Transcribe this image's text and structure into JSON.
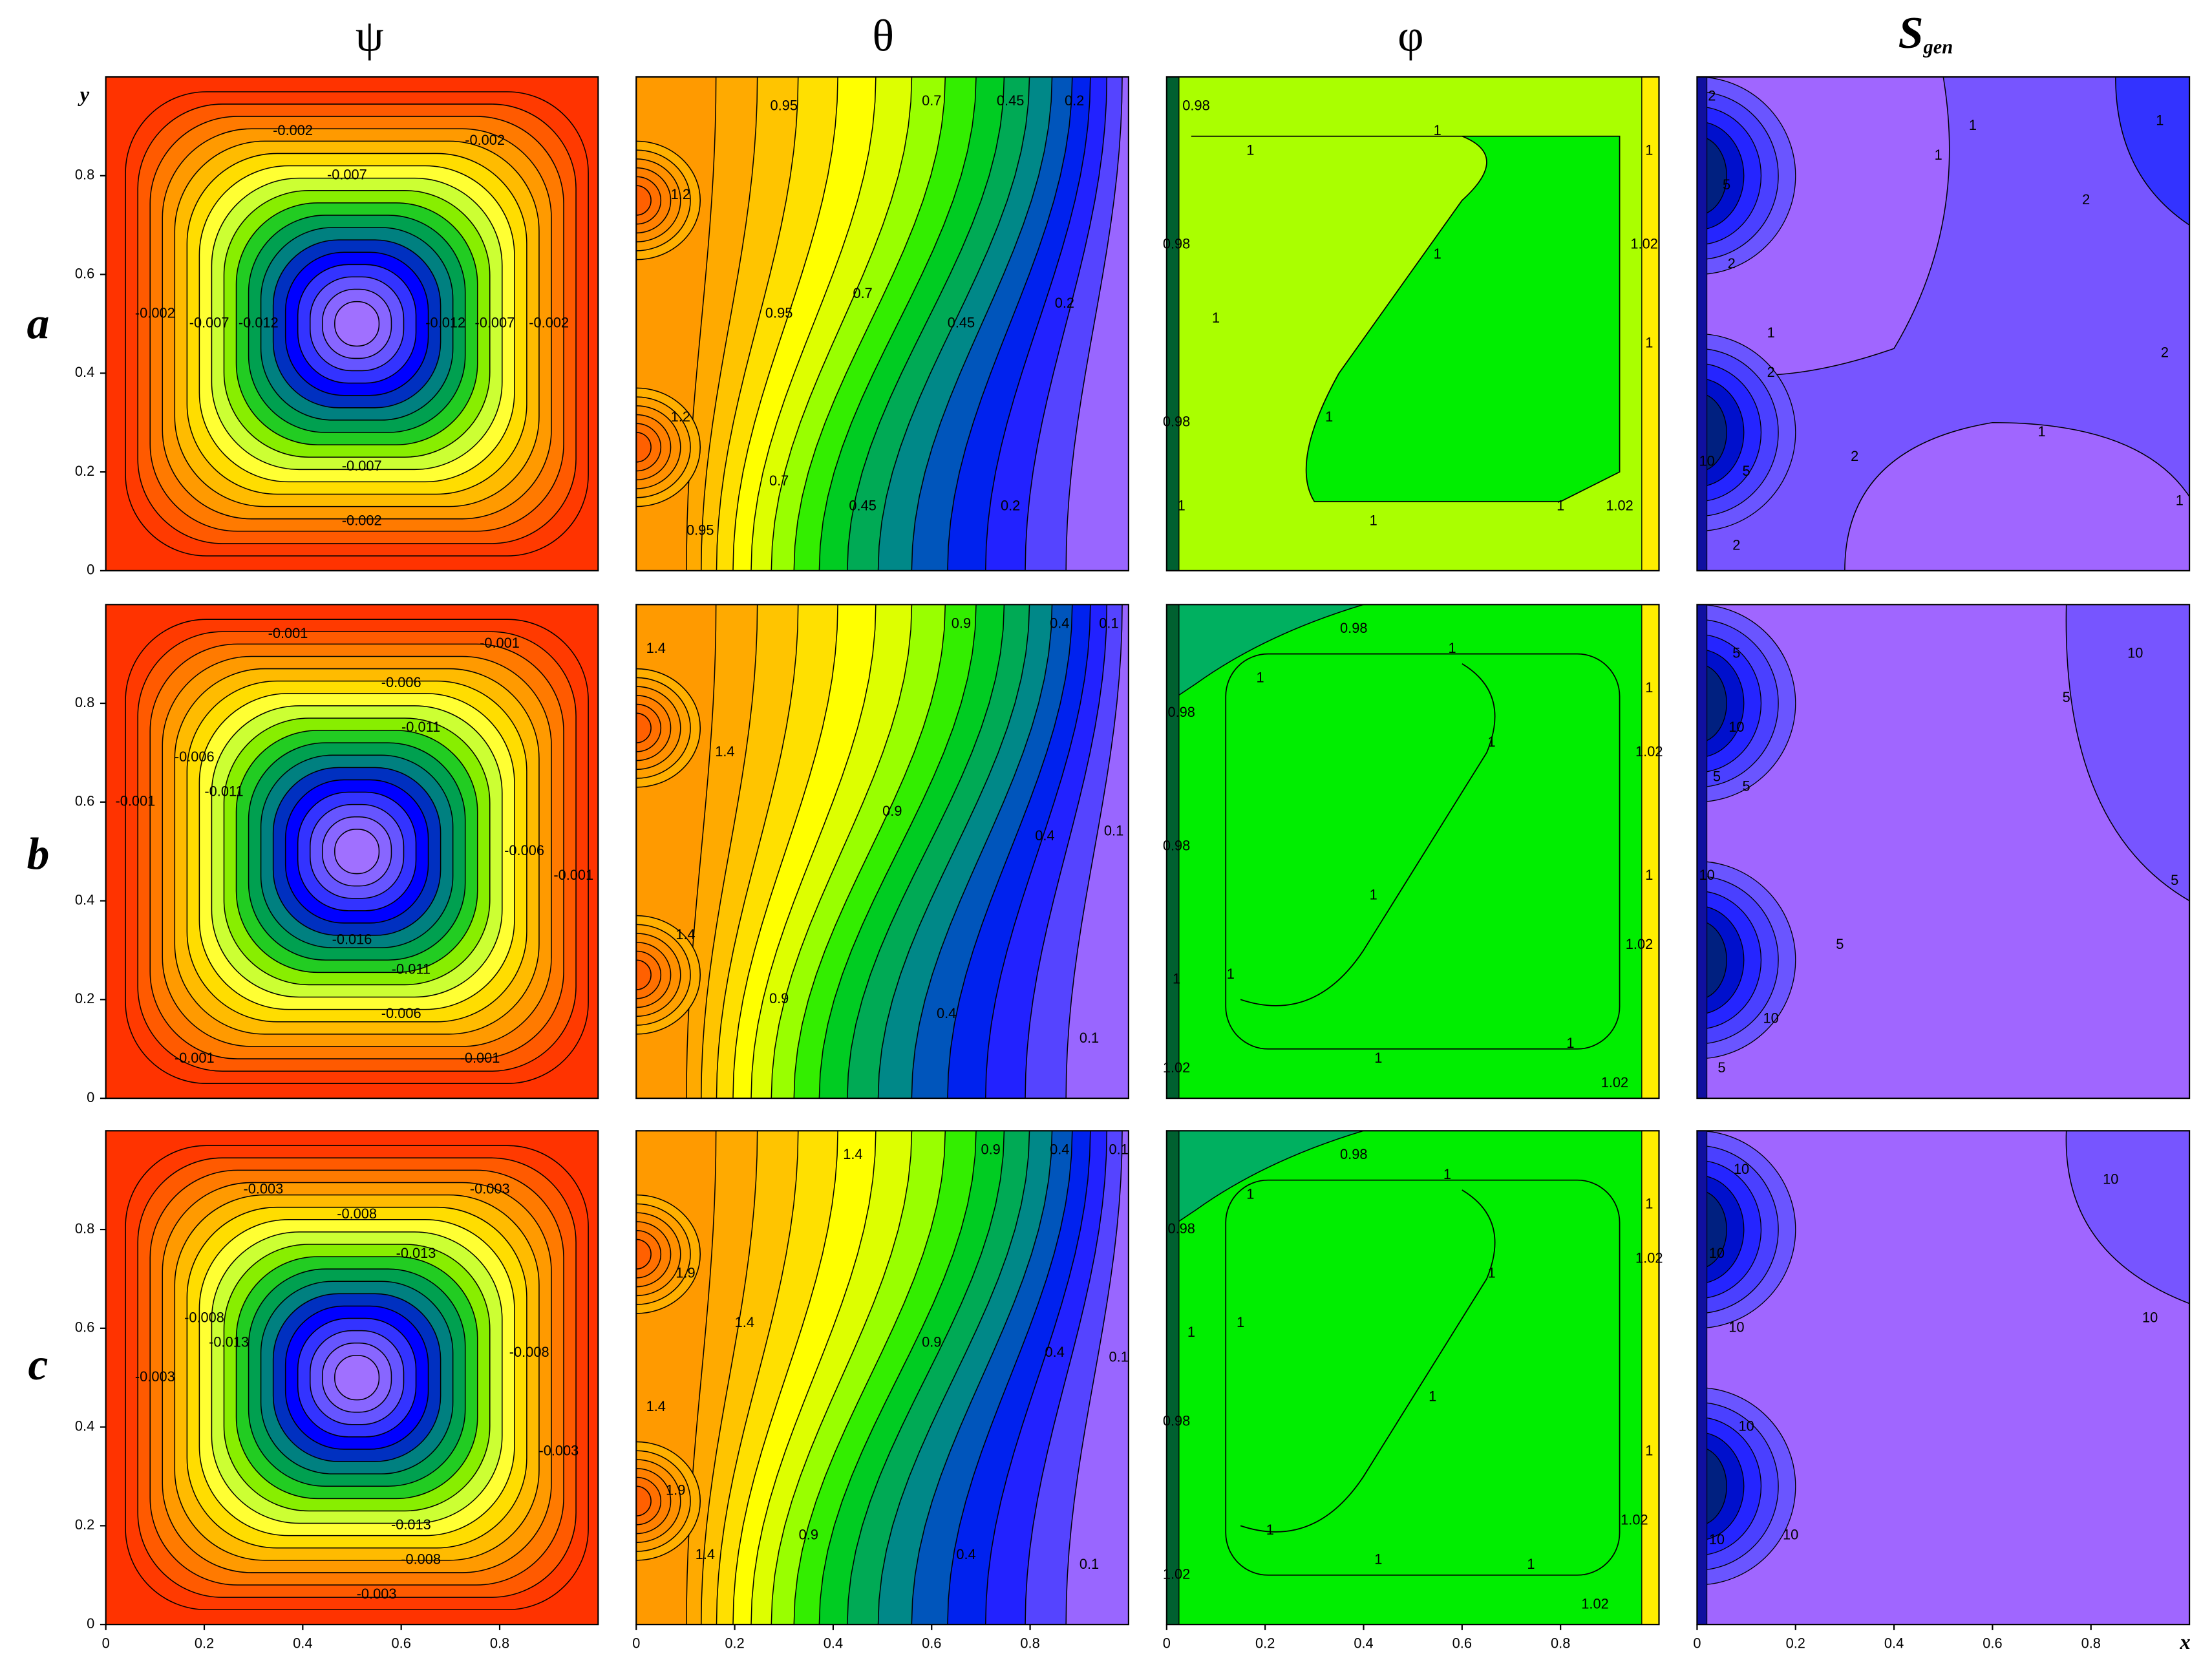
{
  "column_titles": [
    "ψ",
    "θ",
    "φ"
  ],
  "sgen_title": {
    "symbol": "S",
    "subscript": "gen"
  },
  "row_labels": [
    "a",
    "b",
    "c"
  ],
  "chart_data": [
    {
      "type": "contour",
      "xlim": [
        0,
        1
      ],
      "ylim": [
        0,
        1
      ],
      "ylabel": "y",
      "yticks": [
        0,
        0.2,
        0.4,
        0.6,
        0.8
      ],
      "contour_labels": [
        -0.002,
        -0.002,
        -0.007,
        -0.002,
        -0.007,
        -0.012,
        -0.012,
        -0.007,
        -0.002,
        -0.007,
        -0.002
      ]
    },
    {
      "type": "contour",
      "xlim": [
        0,
        1
      ],
      "ylim": [
        0,
        1
      ],
      "contour_labels": [
        0.95,
        0.7,
        0.45,
        0.2,
        1.2,
        0.95,
        0.7,
        0.45,
        0.2,
        1.2,
        0.95,
        0.7,
        0.45,
        0.2
      ]
    },
    {
      "type": "contour",
      "xlim": [
        0,
        1
      ],
      "ylim": [
        0,
        1
      ],
      "contour_labels": [
        0.98,
        1,
        1,
        1,
        0.98,
        1,
        1.02,
        1,
        1,
        1,
        0.98,
        1,
        1,
        1,
        1.02
      ]
    },
    {
      "type": "contour",
      "xlim": [
        0,
        1
      ],
      "ylim": [
        0,
        1
      ],
      "contour_labels": [
        2,
        1,
        1,
        1,
        2,
        5,
        2,
        2,
        1,
        2,
        2,
        1,
        10,
        5,
        2,
        1
      ]
    },
    {
      "type": "contour",
      "xlim": [
        0,
        1
      ],
      "ylim": [
        0,
        1
      ],
      "yticks": [
        0,
        0.2,
        0.4,
        0.6,
        0.8
      ],
      "contour_labels": [
        -0.001,
        -0.001,
        -0.006,
        -0.011,
        -0.006,
        -0.001,
        -0.011,
        -0.006,
        -0.001,
        -0.016,
        -0.011,
        -0.006,
        -0.001,
        -0.001
      ]
    },
    {
      "type": "contour",
      "xlim": [
        0,
        1
      ],
      "ylim": [
        0,
        1
      ],
      "contour_labels": [
        1.4,
        0.9,
        0.4,
        0.1,
        1.4,
        0.9,
        0.4,
        0.1,
        1.4,
        0.9,
        0.4,
        0.1
      ]
    },
    {
      "type": "contour",
      "xlim": [
        0,
        1
      ],
      "ylim": [
        0,
        1
      ],
      "contour_labels": [
        0.98,
        1,
        1,
        0.98,
        1,
        1.02,
        1,
        0.98,
        1,
        1,
        1,
        1.02,
        1,
        1,
        1,
        1.02,
        1.02
      ]
    },
    {
      "type": "contour",
      "xlim": [
        0,
        1
      ],
      "ylim": [
        0,
        1
      ],
      "contour_labels": [
        5,
        10,
        5,
        10,
        5,
        5,
        10,
        5,
        5,
        10,
        5
      ]
    },
    {
      "type": "contour",
      "xlim": [
        0,
        1
      ],
      "ylim": [
        0,
        1
      ],
      "yticks": [
        0,
        0.2,
        0.4,
        0.6,
        0.8
      ],
      "xticks": [
        0,
        0.2,
        0.4,
        0.6,
        0.8
      ],
      "contour_labels": [
        -0.003,
        -0.003,
        -0.008,
        -0.013,
        -0.008,
        -0.003,
        -0.013,
        -0.008,
        -0.003,
        -0.013,
        -0.008,
        -0.003
      ]
    },
    {
      "type": "contour",
      "xlim": [
        0,
        1
      ],
      "ylim": [
        0,
        1
      ],
      "xticks": [
        0,
        0.2,
        0.4,
        0.6,
        0.8
      ],
      "contour_labels": [
        1.4,
        0.9,
        0.4,
        0.1,
        1.9,
        1.4,
        0.9,
        0.4,
        0.1,
        1.4,
        1.9,
        1.4,
        0.9,
        0.4,
        0.1
      ]
    },
    {
      "type": "contour",
      "xlim": [
        0,
        1
      ],
      "ylim": [
        0,
        1
      ],
      "xticks": [
        0,
        0.2,
        0.4,
        0.6,
        0.8
      ],
      "contour_labels": [
        0.98,
        1,
        1,
        0.98,
        1,
        1.02,
        1,
        1,
        1,
        1,
        0.98,
        1,
        1.02,
        1,
        1,
        1,
        1.02,
        1.02
      ]
    },
    {
      "type": "contour",
      "xlim": [
        0,
        1
      ],
      "ylim": [
        0,
        1
      ],
      "xticks": [
        0,
        0.2,
        0.4,
        0.6,
        0.8
      ],
      "xlabel": "x",
      "contour_labels": [
        10,
        10,
        10,
        10,
        10,
        10,
        10,
        10
      ]
    }
  ]
}
